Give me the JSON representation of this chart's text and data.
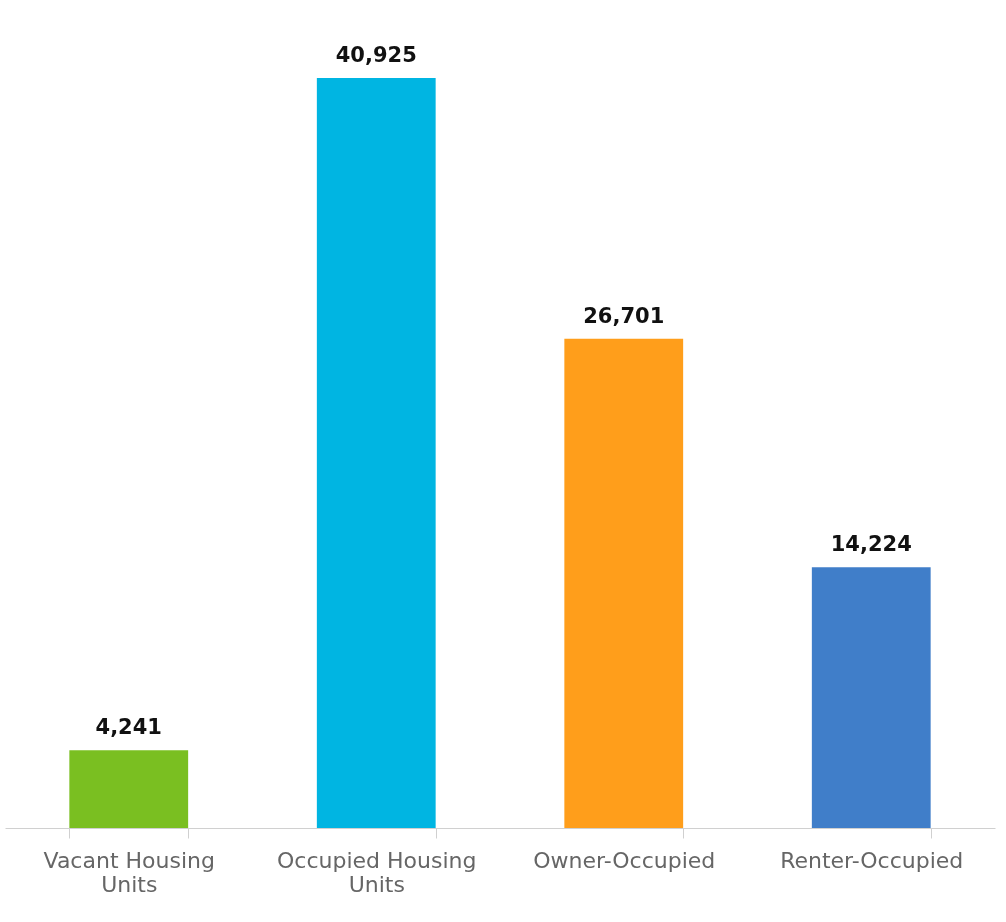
{
  "chart_data": {
    "type": "bar",
    "categories": [
      "Vacant Housing Units",
      "Occupied Housing Units",
      "Owner-Occupied",
      "Renter-Occupied"
    ],
    "values": [
      4241,
      40925,
      26701,
      14224
    ],
    "colors": [
      "#7abf21",
      "#00b5e2",
      "#ff9e1b",
      "#407ec9"
    ],
    "value_labels": [
      "4,241",
      "40,925",
      "26,701",
      "14,224"
    ],
    "grid": false,
    "legend": false,
    "tick_labels": "x"
  }
}
